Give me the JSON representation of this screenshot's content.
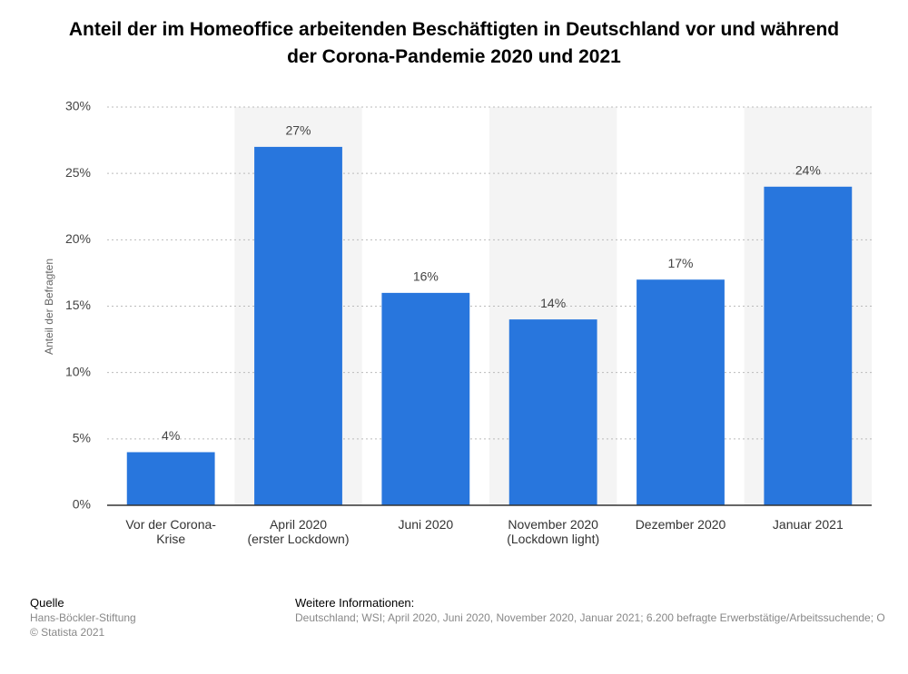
{
  "chart_data": {
    "type": "bar",
    "title": "Anteil der im Homeoffice arbeitenden Beschäftigten in Deutschland vor und während\nder Corona-Pandemie 2020 und 2021",
    "y_axis_label": "Anteil der Befragten",
    "categories": [
      "Vor der Corona-\nKrise",
      "April 2020\n(erster Lockdown)",
      "Juni 2020",
      "November 2020\n(Lockdown light)",
      "Dezember 2020",
      "Januar 2021"
    ],
    "values": [
      4,
      27,
      16,
      14,
      17,
      24
    ],
    "value_labels": [
      "4%",
      "27%",
      "16%",
      "14%",
      "17%",
      "24%"
    ],
    "color": "#2876dd",
    "ylim": [
      0,
      30
    ],
    "yticks": [
      {
        "value": 0,
        "label": "0%"
      },
      {
        "value": 5,
        "label": "5%"
      },
      {
        "value": 10,
        "label": "10%"
      },
      {
        "value": 15,
        "label": "15%"
      },
      {
        "value": 20,
        "label": "20%"
      },
      {
        "value": 25,
        "label": "25%"
      },
      {
        "value": 30,
        "label": "30%"
      }
    ],
    "grid": true
  },
  "footer": {
    "source_heading": "Quelle",
    "source": "Hans-Böckler-Stiftung",
    "copyright": "© Statista 2021",
    "info_heading": "Weitere Informationen:",
    "info": "Deutschland; WSI; April 2020, Juni 2020, November 2020, Januar 2021; 6.200 befragte Erwerbstätige/Arbeitssuchende; O"
  }
}
